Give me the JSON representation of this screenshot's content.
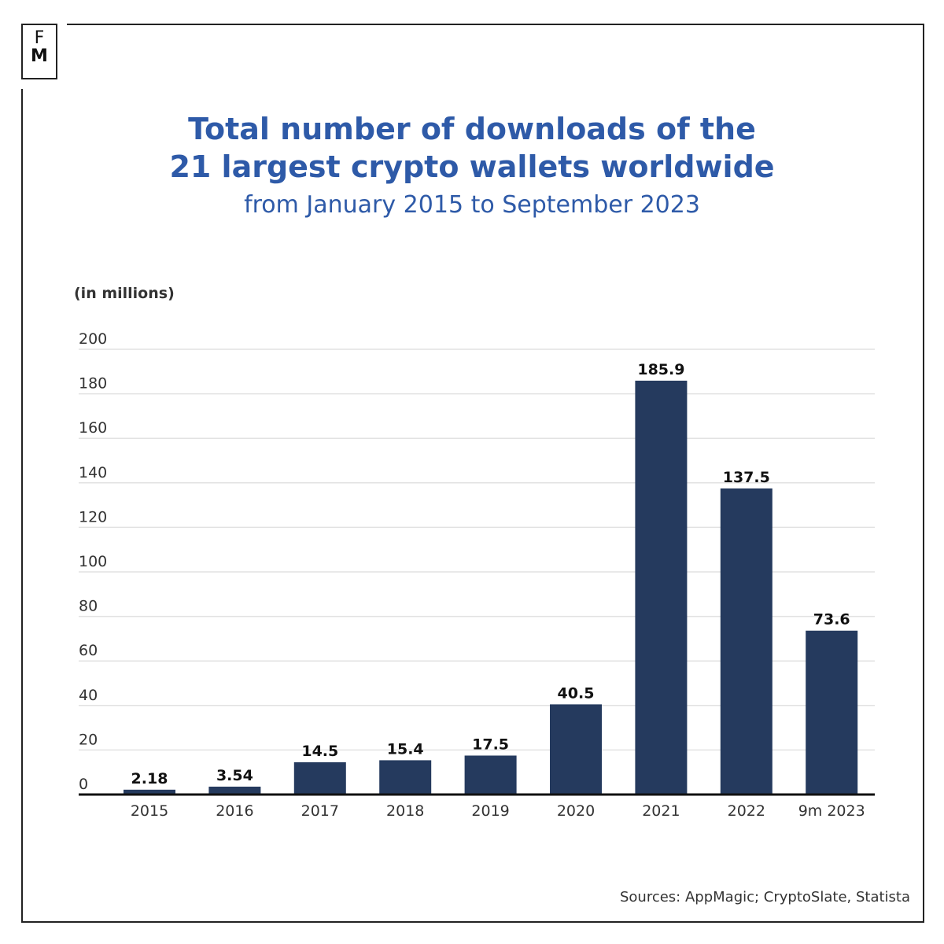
{
  "logo": {
    "text_top": "F",
    "text_bottom": "M"
  },
  "chart_data": {
    "type": "bar",
    "title": "Total number of downloads of the 21 largest crypto wallets worldwide",
    "subtitle": "from January 2015 to September 2023",
    "ylabel": "(in millions)",
    "categories": [
      "2015",
      "2016",
      "2017",
      "2018",
      "2019",
      "2020",
      "2021",
      "2022",
      "9m 2023"
    ],
    "values": [
      2.18,
      3.54,
      14.5,
      15.4,
      17.5,
      40.5,
      185.9,
      137.5,
      73.6
    ],
    "value_labels": [
      "2.18",
      "3.54",
      "14.5",
      "15.4",
      "17.5",
      "40.5",
      "185.9",
      "137.5",
      "73.6"
    ],
    "ylim": [
      0,
      200
    ],
    "yticks": [
      0,
      20,
      40,
      60,
      80,
      100,
      120,
      140,
      160,
      180,
      200
    ],
    "grid": true,
    "bar_color": "#253a5e",
    "title_color": "#2e5aa8"
  },
  "source": "Sources: AppMagic; CryptoSlate, Statista"
}
